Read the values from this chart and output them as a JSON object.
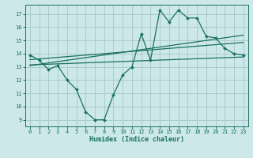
{
  "bg_color": "#cce8e8",
  "grid_color": "#aacccc",
  "line_color": "#1a7060",
  "xlabel": "Humidex (Indice chaleur)",
  "ylabel_ticks": [
    9,
    10,
    11,
    12,
    13,
    14,
    15,
    16,
    17
  ],
  "xlim": [
    -0.5,
    23.5
  ],
  "ylim": [
    8.5,
    17.7
  ],
  "xticks": [
    0,
    1,
    2,
    3,
    4,
    5,
    6,
    7,
    8,
    9,
    10,
    11,
    12,
    13,
    14,
    15,
    16,
    17,
    18,
    19,
    20,
    21,
    22,
    23
  ],
  "curve1_x": [
    0,
    1,
    2,
    3,
    4,
    5,
    6,
    7,
    8,
    9,
    10,
    11,
    12,
    13,
    14,
    15,
    16,
    17,
    18,
    19,
    20,
    21,
    22,
    23
  ],
  "curve1_y": [
    13.9,
    13.5,
    12.8,
    13.1,
    12.0,
    11.3,
    9.6,
    9.0,
    9.0,
    10.9,
    12.4,
    13.0,
    15.5,
    13.5,
    17.3,
    16.4,
    17.3,
    16.7,
    16.7,
    15.3,
    15.2,
    14.4,
    14.0,
    13.9
  ],
  "line1_x": [
    0,
    23
  ],
  "line1_y": [
    13.1,
    15.4
  ],
  "line2_x": [
    0,
    23
  ],
  "line2_y": [
    13.55,
    14.85
  ],
  "line3_x": [
    0,
    23
  ],
  "line3_y": [
    13.15,
    13.75
  ]
}
